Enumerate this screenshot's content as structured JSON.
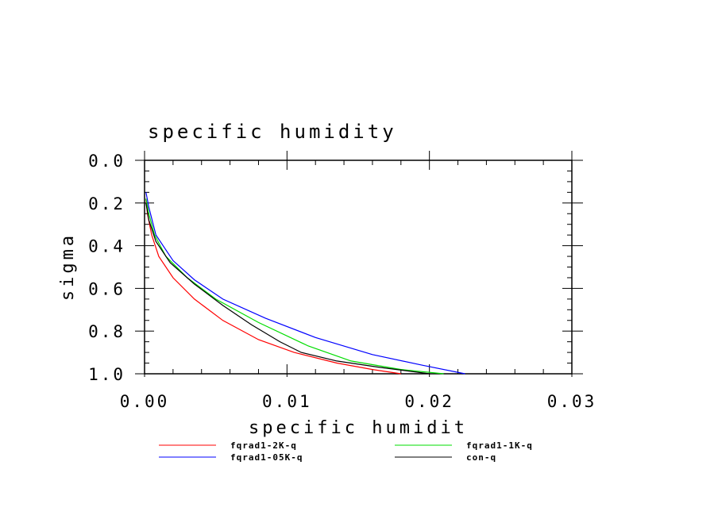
{
  "chart_data": {
    "type": "line",
    "title": "specific humidity",
    "xlabel": "specific humidit",
    "ylabel": "sigma",
    "xlim": [
      0,
      0.03
    ],
    "ylim": [
      0,
      1
    ],
    "y_inverted": true,
    "x_ticks": [
      "0.00",
      "0.01",
      "0.02",
      "0.03"
    ],
    "y_ticks": [
      "0.0",
      "0.2",
      "0.4",
      "0.6",
      "0.8",
      "1.0"
    ],
    "legend_position": "bottom",
    "series": [
      {
        "name": "fqrad1-2K-q",
        "color": "#ff0000",
        "points": [
          [
            0.0001,
            0.18
          ],
          [
            0.0002,
            0.25
          ],
          [
            0.0005,
            0.35
          ],
          [
            0.001,
            0.45
          ],
          [
            0.002,
            0.55
          ],
          [
            0.0035,
            0.65
          ],
          [
            0.0055,
            0.75
          ],
          [
            0.008,
            0.84
          ],
          [
            0.0105,
            0.9
          ],
          [
            0.0135,
            0.95
          ],
          [
            0.016,
            0.98
          ],
          [
            0.018,
            1.0
          ]
        ]
      },
      {
        "name": "fqrad1-1K-q",
        "color": "#00dd00",
        "points": [
          [
            0.0001,
            0.18
          ],
          [
            0.0003,
            0.25
          ],
          [
            0.0007,
            0.35
          ],
          [
            0.0015,
            0.45
          ],
          [
            0.003,
            0.55
          ],
          [
            0.005,
            0.65
          ],
          [
            0.008,
            0.76
          ],
          [
            0.0115,
            0.87
          ],
          [
            0.0145,
            0.94
          ],
          [
            0.018,
            0.98
          ],
          [
            0.021,
            1.0
          ]
        ]
      },
      {
        "name": "fqrad1-05K-q",
        "color": "#0000ff",
        "points": [
          [
            0.0001,
            0.15
          ],
          [
            0.0003,
            0.22
          ],
          [
            0.0008,
            0.35
          ],
          [
            0.002,
            0.47
          ],
          [
            0.0035,
            0.56
          ],
          [
            0.0055,
            0.65
          ],
          [
            0.0085,
            0.74
          ],
          [
            0.012,
            0.83
          ],
          [
            0.016,
            0.91
          ],
          [
            0.0195,
            0.96
          ],
          [
            0.0225,
            1.0
          ]
        ]
      },
      {
        "name": "con-q",
        "color": "#000000",
        "points": [
          [
            0.0001,
            0.2
          ],
          [
            0.0003,
            0.28
          ],
          [
            0.0008,
            0.38
          ],
          [
            0.0018,
            0.48
          ],
          [
            0.0035,
            0.58
          ],
          [
            0.0055,
            0.68
          ],
          [
            0.0075,
            0.77
          ],
          [
            0.0095,
            0.85
          ],
          [
            0.011,
            0.9
          ],
          [
            0.0135,
            0.94
          ],
          [
            0.0165,
            0.97
          ],
          [
            0.02,
            1.0
          ]
        ]
      }
    ]
  }
}
